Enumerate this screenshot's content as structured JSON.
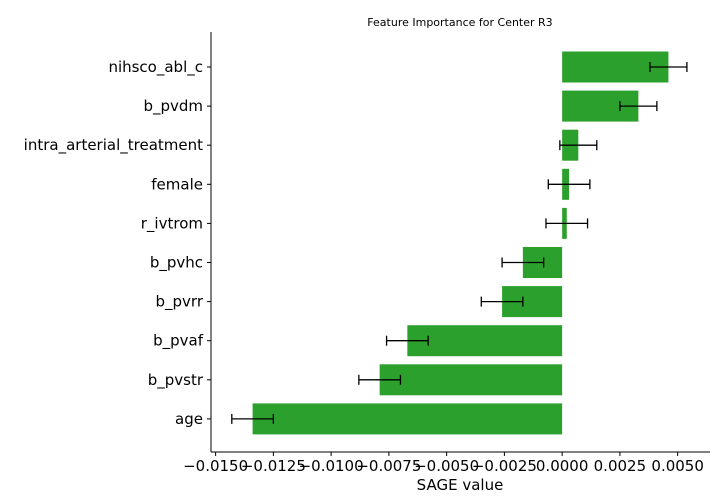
{
  "chart_data": {
    "type": "bar",
    "orientation": "horizontal",
    "title": "Feature Importance for Center R3",
    "xlabel": "SAGE value",
    "ylabel": "",
    "categories": [
      "nihsco_abl_c",
      "b_pvdm",
      "intra_arterial_treatment",
      "female",
      "r_ivtrom",
      "b_pvhc",
      "b_pvrr",
      "b_pvaf",
      "b_pvstr",
      "age"
    ],
    "values": [
      0.0046,
      0.0033,
      0.0007,
      0.0003,
      0.0002,
      -0.0017,
      -0.0026,
      -0.0067,
      -0.0079,
      -0.0134
    ],
    "errors": [
      0.0008,
      0.0008,
      0.0008,
      0.0009,
      0.0009,
      0.0009,
      0.0009,
      0.0009,
      0.0009,
      0.0009
    ],
    "xlim": [
      -0.0152,
      0.0064
    ],
    "xticks": [
      -0.015,
      -0.0125,
      -0.01,
      -0.0075,
      -0.005,
      -0.0025,
      0.0,
      0.0025,
      0.005
    ],
    "xtick_labels": [
      "−0.0150",
      "−0.0125",
      "−0.0100",
      "−0.0075",
      "−0.0050",
      "−0.0025",
      "0.0000",
      "0.0025",
      "0.0050"
    ],
    "bar_color": "#2ca02c",
    "grid": false,
    "legend": "none"
  }
}
